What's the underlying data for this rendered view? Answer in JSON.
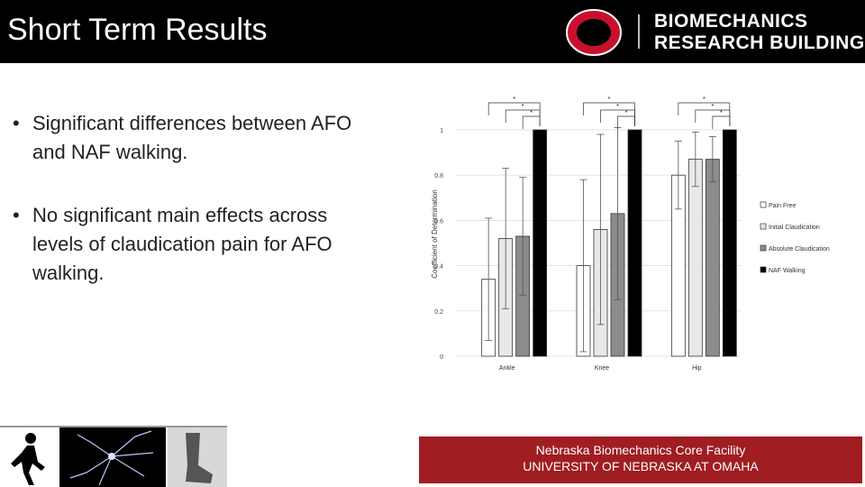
{
  "header": {
    "title": "Short Term Results",
    "brand_line1": "BIOMECHANICS",
    "brand_line2": "RESEARCH BUILDING"
  },
  "bullets": [
    "Significant differences between AFO and NAF walking.",
    "No significant main effects across levels of claudication pain for AFO walking."
  ],
  "bullet_symbol": "•",
  "footer": {
    "line1": "Nebraska Biomechanics Core Facility",
    "line2": "UNIVERSITY OF NEBRASKA AT OMAHA"
  },
  "colors": {
    "header_bg": "#000000",
    "footer_bg": "#a01d21",
    "logo_red": "#c8102e"
  },
  "icons": [
    "walking-person-icon",
    "neuron-image",
    "ankle-foot-orthosis-image"
  ],
  "chart_data": {
    "type": "bar",
    "categories": [
      "Ankle",
      "Knee",
      "Hip"
    ],
    "ylabel": "Coefficient of Determination",
    "ylim": [
      0,
      1
    ],
    "yticks": [
      0,
      0.2,
      0.4,
      0.6,
      0.8,
      1
    ],
    "ytick_labels": [
      "0",
      "0.2",
      "0.4",
      "0.6",
      "0.8",
      "1"
    ],
    "legend_position": "right",
    "grid": true,
    "significance_marker": "*",
    "series": [
      {
        "name": "Pain Free",
        "color": "#ffffff",
        "values": [
          0.34,
          0.4,
          0.8
        ],
        "errors": [
          0.27,
          0.38,
          0.15
        ]
      },
      {
        "name": "Initial Claudication",
        "color": "#e8e8e8",
        "values": [
          0.52,
          0.56,
          0.87
        ],
        "errors": [
          0.31,
          0.42,
          0.12
        ]
      },
      {
        "name": "Absolute Claudication",
        "color": "#8c8c8c",
        "values": [
          0.53,
          0.63,
          0.87
        ],
        "errors": [
          0.26,
          0.38,
          0.1
        ]
      },
      {
        "name": "NAF Walking",
        "color": "#000000",
        "values": [
          1.0,
          1.0,
          1.0
        ],
        "errors": [
          0,
          0,
          0
        ]
      }
    ]
  }
}
